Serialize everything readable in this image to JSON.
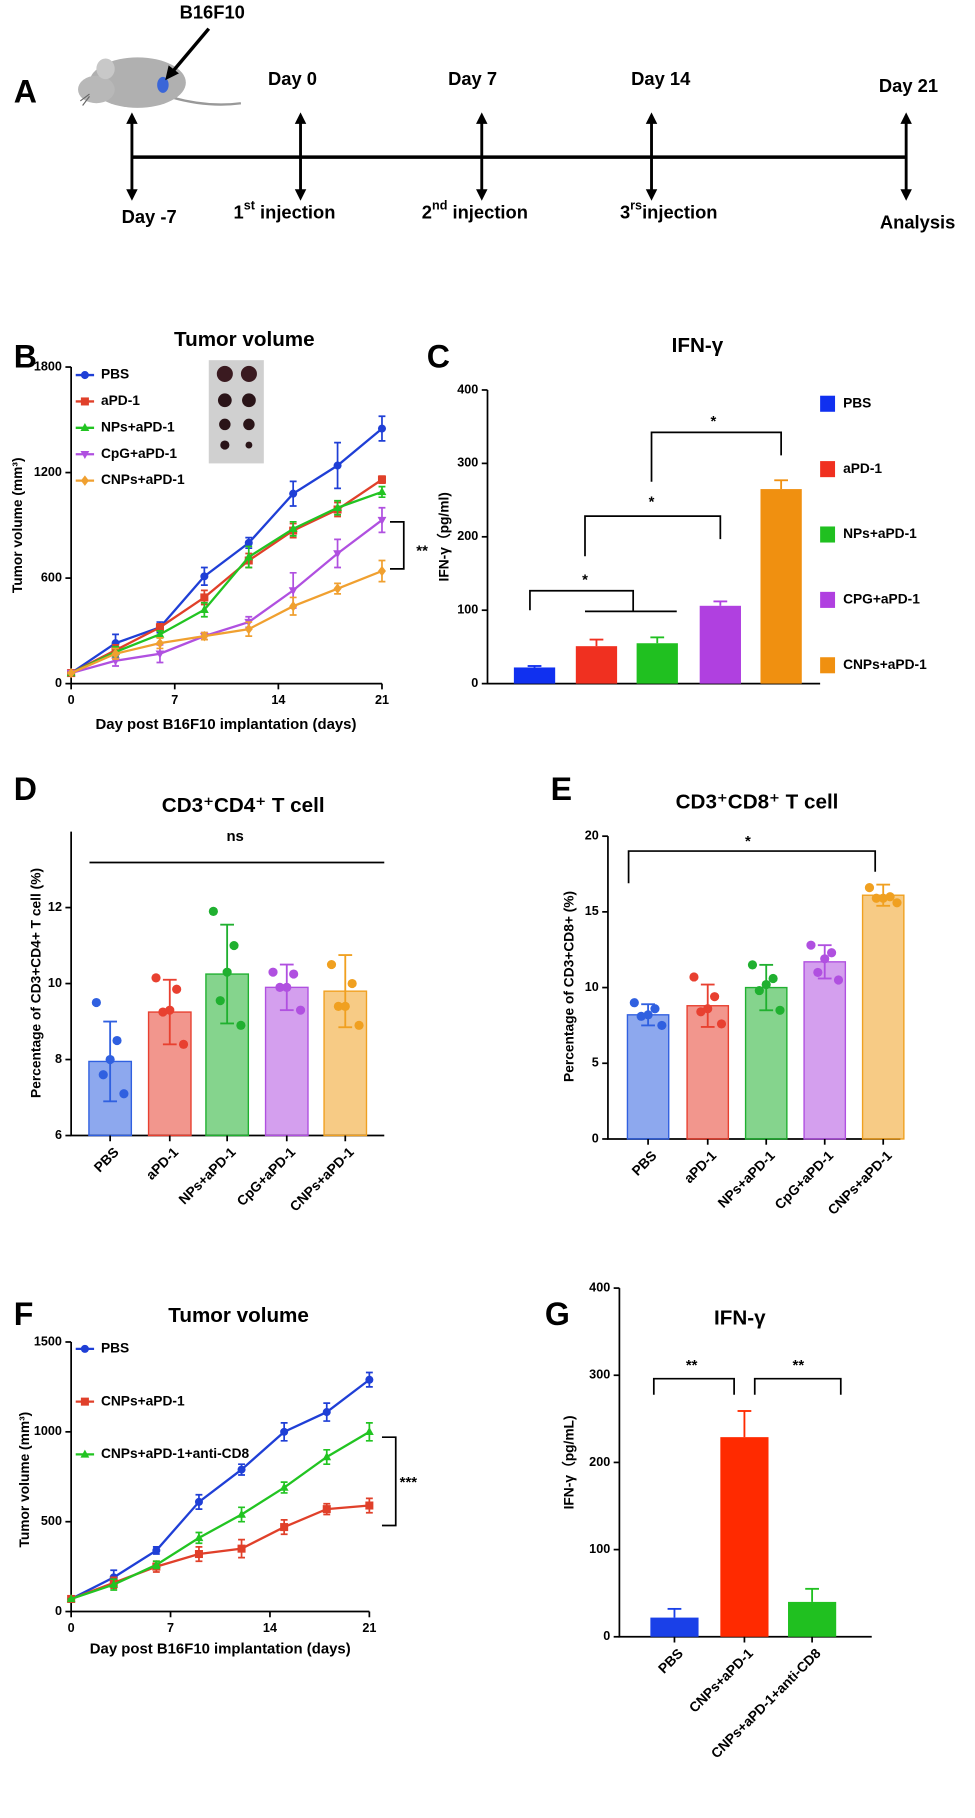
{
  "timeline": {
    "panel": "A",
    "cell_line": "B16F10",
    "days": [
      "Day -7",
      "Day 0",
      "Day 7",
      "Day 14",
      "Day 21"
    ],
    "events": [
      {
        "main": "1",
        "sup": "st",
        "rest": " injection"
      },
      {
        "main": "2",
        "sup": "nd",
        "rest": " injection"
      },
      {
        "main": "3",
        "sup": "rs",
        "rest": "injection"
      },
      {
        "main": "Analysis"
      }
    ]
  },
  "chart_data": [
    {
      "type": "line",
      "panel": "B",
      "title": "Tumor volume",
      "xlabel": "Day post B16F10 implantation (days)",
      "ylabel": "Tumor volume (mm³)",
      "x": [
        0,
        3,
        6,
        9,
        12,
        15,
        18,
        21
      ],
      "xlim": [
        0,
        21
      ],
      "xticks": [
        0,
        7,
        14,
        21
      ],
      "ylim": [
        0,
        1800
      ],
      "yticks": [
        0,
        600,
        1200,
        1800
      ],
      "legend": "upper left",
      "series": [
        {
          "name": "PBS",
          "color": "#1f3fd6",
          "marker": "circle",
          "values": [
            60,
            230,
            320,
            610,
            800,
            1080,
            1240,
            1450
          ],
          "errors": [
            0,
            50,
            30,
            50,
            30,
            70,
            130,
            70
          ]
        },
        {
          "name": "aPD-1",
          "color": "#e0402a",
          "marker": "square",
          "values": [
            60,
            190,
            320,
            490,
            700,
            870,
            990,
            1160
          ],
          "errors": [
            0,
            30,
            20,
            40,
            40,
            40,
            40,
            20
          ]
        },
        {
          "name": "NPs+aPD-1",
          "color": "#22c422",
          "marker": "triangle",
          "values": [
            60,
            180,
            280,
            420,
            720,
            880,
            1000,
            1090
          ],
          "errors": [
            0,
            30,
            20,
            40,
            60,
            40,
            40,
            30
          ]
        },
        {
          "name": "CpG+aPD-1",
          "color": "#b050e0",
          "marker": "triangle-down",
          "values": [
            60,
            130,
            170,
            270,
            350,
            530,
            740,
            930
          ],
          "errors": [
            0,
            30,
            50,
            20,
            30,
            100,
            80,
            70
          ]
        },
        {
          "name": "CNPs+aPD-1",
          "color": "#f0a030",
          "marker": "diamond",
          "values": [
            60,
            170,
            230,
            270,
            310,
            440,
            540,
            640
          ],
          "errors": [
            0,
            30,
            30,
            20,
            40,
            50,
            30,
            60
          ]
        }
      ],
      "annotations": [
        "**"
      ]
    },
    {
      "type": "bar",
      "panel": "C",
      "title": "IFN-γ",
      "ylabel": "IFN-γ（pg/ml)",
      "categories": [
        "PBS",
        "aPD-1",
        "NPs+aPD-1",
        "CPG+aPD-1",
        "CNPs+aPD-1"
      ],
      "values": [
        22,
        51,
        55,
        106,
        265
      ],
      "errors": [
        2,
        9,
        8,
        6,
        12
      ],
      "error_direction": "up",
      "colors": [
        "#1030f0",
        "#f03020",
        "#20c020",
        "#b040e0",
        "#f09010"
      ],
      "ylim": [
        0,
        400
      ],
      "yticks": [
        0,
        100,
        200,
        300,
        400
      ],
      "legend": "right",
      "annotations": [
        "*",
        "*",
        "*"
      ]
    },
    {
      "type": "bar",
      "panel": "D",
      "title": "CD3⁺CD4⁺ T cell",
      "ylabel": "Percentage of CD3+CD4+ T cell (%)",
      "categories": [
        "PBS",
        "aPD-1",
        "NPs+aPD-1",
        "CpG+aPD-1",
        "CNPs+aPD-1"
      ],
      "values": [
        7.95,
        9.25,
        10.25,
        9.9,
        9.8
      ],
      "errors": [
        1.05,
        0.85,
        1.3,
        0.6,
        0.95
      ],
      "error_direction": "both",
      "points": [
        [
          9.5,
          8.5,
          8.0,
          7.6,
          7.1
        ],
        [
          10.15,
          9.85,
          9.3,
          9.25,
          8.4
        ],
        [
          11.9,
          11.0,
          10.3,
          9.55,
          8.9
        ],
        [
          10.3,
          10.25,
          9.9,
          9.9,
          9.3
        ],
        [
          10.5,
          10.0,
          9.4,
          9.4,
          8.9
        ]
      ],
      "colors": [
        "#3060e0",
        "#e84030",
        "#20b030",
        "#b050e0",
        "#f0a020"
      ],
      "bar_alpha": 0.55,
      "ylim": [
        6,
        14
      ],
      "yticks": [
        6,
        8,
        10,
        12
      ],
      "annotations": [
        "ns"
      ]
    },
    {
      "type": "bar",
      "panel": "E",
      "title": "CD3⁺CD8⁺ T cell",
      "ylabel": "Percentage of CD3+CD8+ (%)",
      "categories": [
        "PBS",
        "aPD-1",
        "NPs+aPD-1",
        "CpG+aPD-1",
        "CNPs+aPD-1"
      ],
      "values": [
        8.2,
        8.8,
        10.0,
        11.7,
        16.1
      ],
      "errors": [
        0.7,
        1.4,
        1.5,
        1.1,
        0.7
      ],
      "error_direction": "both",
      "points": [
        [
          9.0,
          8.6,
          8.2,
          8.1,
          7.5
        ],
        [
          10.7,
          9.4,
          8.6,
          8.4,
          7.6
        ],
        [
          11.5,
          10.6,
          10.2,
          9.8,
          8.5
        ],
        [
          12.8,
          12.3,
          11.9,
          11.0,
          10.5
        ],
        [
          16.6,
          16.0,
          15.9,
          15.9,
          15.6
        ]
      ],
      "colors": [
        "#3060e0",
        "#e84030",
        "#20b030",
        "#b050e0",
        "#f0a020"
      ],
      "bar_alpha": 0.55,
      "ylim": [
        0,
        20
      ],
      "yticks": [
        0,
        5,
        10,
        15,
        20
      ],
      "annotations": [
        "*"
      ]
    },
    {
      "type": "line",
      "panel": "F",
      "title": "Tumor volume",
      "xlabel": "Day post B16F10 implantation (days)",
      "ylabel": "Tumor volume (mm³)",
      "x": [
        0,
        3,
        6,
        9,
        12,
        15,
        18,
        21
      ],
      "xlim": [
        0,
        21
      ],
      "xticks": [
        0,
        7,
        14,
        21
      ],
      "ylim": [
        0,
        1500
      ],
      "yticks": [
        0,
        500,
        1000,
        1500
      ],
      "legend": "upper left",
      "series": [
        {
          "name": "PBS",
          "color": "#1f3fd6",
          "marker": "circle",
          "values": [
            70,
            190,
            340,
            610,
            790,
            1000,
            1110,
            1290
          ],
          "errors": [
            0,
            40,
            20,
            40,
            30,
            50,
            50,
            40
          ]
        },
        {
          "name": "CNPs+aPD-1",
          "color": "#e0402a",
          "marker": "square",
          "values": [
            70,
            160,
            250,
            320,
            350,
            470,
            570,
            590
          ],
          "errors": [
            0,
            30,
            30,
            40,
            50,
            40,
            30,
            40
          ]
        },
        {
          "name": "CNPs+aPD-1+anti-CD8",
          "color": "#22c422",
          "marker": "triangle",
          "values": [
            70,
            150,
            260,
            410,
            540,
            690,
            860,
            1000
          ],
          "errors": [
            0,
            30,
            20,
            30,
            40,
            30,
            40,
            50
          ]
        }
      ],
      "annotations": [
        "***"
      ]
    },
    {
      "type": "bar",
      "panel": "G",
      "title": "IFN-γ",
      "ylabel": "IFN-γ（pg/mL)",
      "categories": [
        "PBS",
        "CNPs+aPD-1",
        "CNPs+aPD-1+anti-CD8"
      ],
      "values": [
        22,
        229,
        40
      ],
      "errors": [
        10,
        30,
        15
      ],
      "error_direction": "up",
      "colors": [
        "#1a40e8",
        "#ff2a00",
        "#20c020"
      ],
      "ylim": [
        0,
        400
      ],
      "yticks": [
        0,
        100,
        200,
        300,
        400
      ],
      "annotations": [
        "**",
        "**"
      ]
    }
  ]
}
